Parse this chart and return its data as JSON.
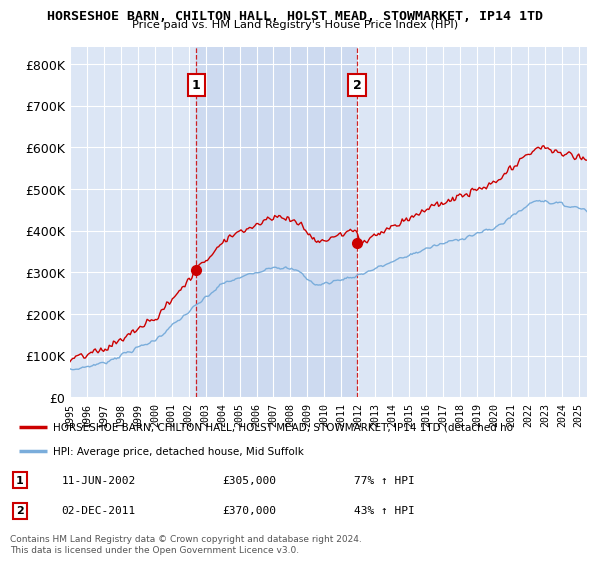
{
  "title1": "HORSESHOE BARN, CHILTON HALL, HOLST MEAD, STOWMARKET, IP14 1TD",
  "title2": "Price paid vs. HM Land Registry's House Price Index (HPI)",
  "background_color": "#ffffff",
  "plot_bg_color": "#dce6f5",
  "grid_color": "#ffffff",
  "shading_color": "#ccd9f0",
  "red_color": "#cc0000",
  "blue_color": "#7aaddb",
  "sale1_date_label": "11-JUN-2002",
  "sale1_price": 305000,
  "sale1_hpi_pct": "77% ↑ HPI",
  "sale2_date_label": "02-DEC-2011",
  "sale2_price": 370000,
  "sale2_hpi_pct": "43% ↑ HPI",
  "legend_line1": "HORSESHOE BARN, CHILTON HALL, HOLST MEAD, STOWMARKET, IP14 1TD (detached ho",
  "legend_line2": "HPI: Average price, detached house, Mid Suffolk",
  "footnote": "Contains HM Land Registry data © Crown copyright and database right 2024.\nThis data is licensed under the Open Government Licence v3.0.",
  "ylim_max": 840000,
  "yticks": [
    0,
    100000,
    200000,
    300000,
    400000,
    500000,
    600000,
    700000,
    800000
  ],
  "sale1_x": 2002.45,
  "sale2_x": 2011.92,
  "xmin": 1995,
  "xmax": 2025.5
}
